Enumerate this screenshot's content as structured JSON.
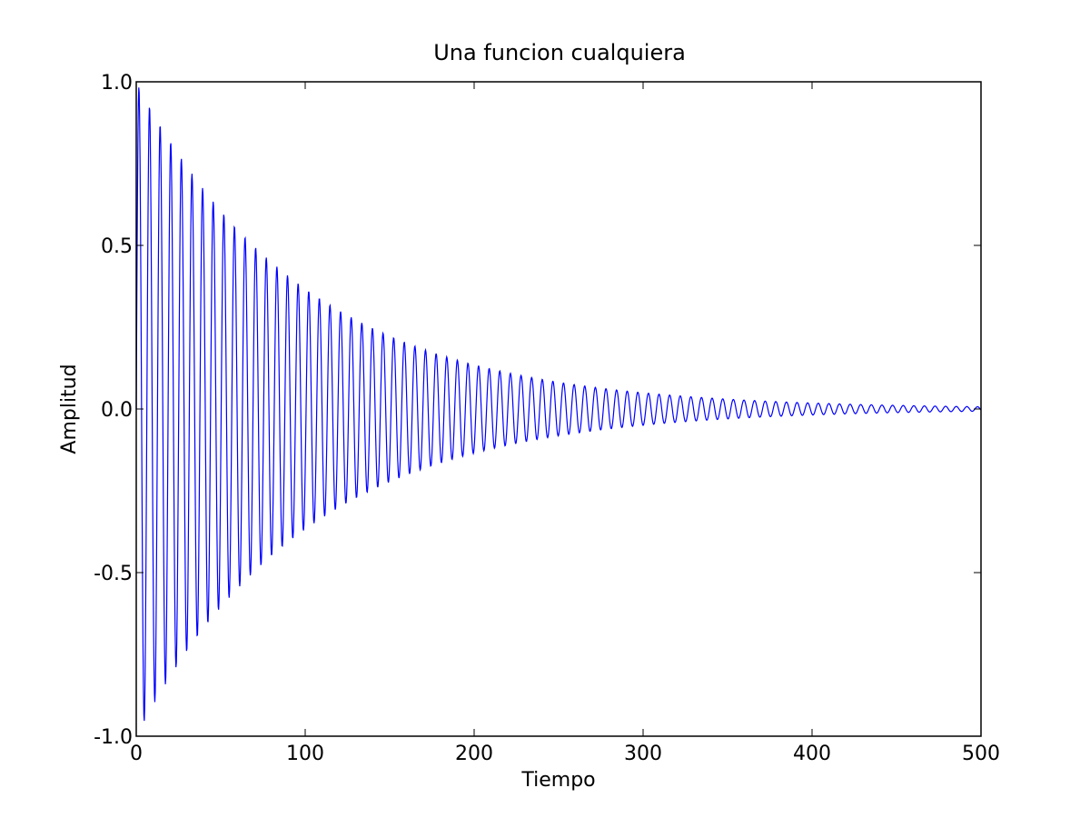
{
  "chart_data": {
    "type": "line",
    "title": "Una funcion cualquiera",
    "xlabel": "Tiempo",
    "ylabel": "Amplitud",
    "xlim": [
      0,
      500
    ],
    "ylim": [
      -1.0,
      1.0
    ],
    "x_ticks": [
      "0",
      "100",
      "200",
      "300",
      "400",
      "500"
    ],
    "y_ticks": [
      "-1.0",
      "-0.5",
      "0.0",
      "0.5",
      "1.0"
    ],
    "grid": false,
    "legend": "none",
    "series": [
      {
        "color": "#0000ff",
        "function": "exp(-0.01*t)*sin(t)",
        "t_range": [
          0,
          500
        ],
        "samples": 2001,
        "peak_envelope": [
          {
            "x": 0,
            "y": 1.0
          },
          {
            "x": 100,
            "y": 0.37
          },
          {
            "x": 200,
            "y": 0.135
          },
          {
            "x": 300,
            "y": 0.05
          },
          {
            "x": 400,
            "y": 0.018
          },
          {
            "x": 500,
            "y": 0.007
          }
        ]
      }
    ]
  }
}
